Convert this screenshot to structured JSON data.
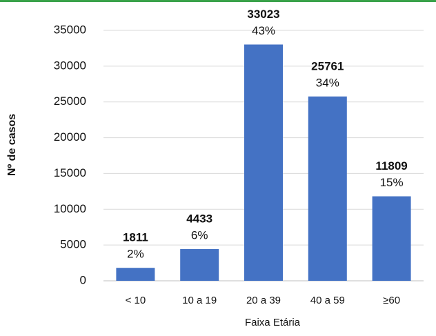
{
  "chart_data": {
    "type": "bar",
    "x_label": "Faixa Etária",
    "y_label": "Nº de casos",
    "categories": [
      "< 10",
      "10 a 19",
      "20 a 39",
      "40 a 59",
      "≥60"
    ],
    "values": [
      1811,
      4433,
      33023,
      25761,
      11809
    ],
    "percent_labels": [
      "2%",
      "6%",
      "43%",
      "34%",
      "15%"
    ],
    "color": "#4472c4",
    "ylim": [
      0,
      35000
    ],
    "yticks": [
      0,
      5000,
      10000,
      15000,
      20000,
      25000,
      30000,
      35000
    ],
    "grid": true
  }
}
